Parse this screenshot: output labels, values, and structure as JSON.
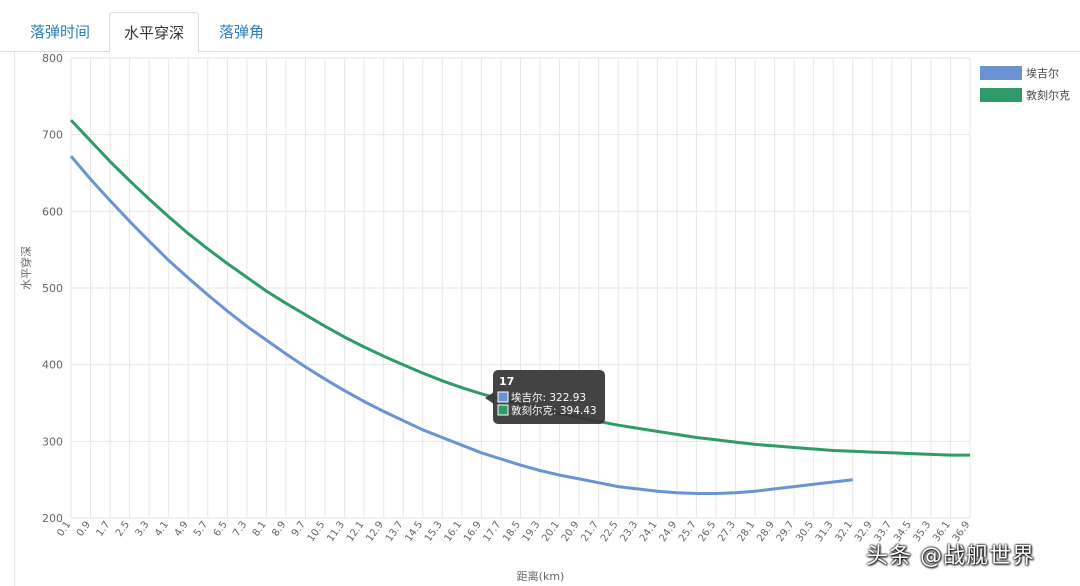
{
  "tabs": [
    {
      "label": "落弹时间",
      "active": false
    },
    {
      "label": "水平穿深",
      "active": true
    },
    {
      "label": "落弹角",
      "active": false
    }
  ],
  "chart_data": {
    "type": "line",
    "title": "",
    "xlabel": "距离(km)",
    "ylabel": "水平穿深",
    "ylim": [
      200,
      800
    ],
    "yticks": [
      200,
      300,
      400,
      500,
      600,
      700,
      800
    ],
    "grid": true,
    "legend_position": "top-right",
    "x": [
      "0.1",
      "0.9",
      "1.7",
      "2.5",
      "3.3",
      "4.1",
      "4.9",
      "5.7",
      "6.5",
      "7.3",
      "8.1",
      "8.9",
      "9.7",
      "10.5",
      "11.3",
      "12.1",
      "12.9",
      "13.7",
      "14.5",
      "15.3",
      "16.1",
      "16.9",
      "17.7",
      "18.5",
      "19.3",
      "20.1",
      "20.9",
      "21.7",
      "22.5",
      "23.3",
      "24.1",
      "24.9",
      "25.7",
      "26.5",
      "27.3",
      "28.1",
      "28.9",
      "29.7",
      "30.5",
      "31.3",
      "32.1",
      "32.9",
      "33.7",
      "34.5",
      "35.3",
      "36.1",
      "36.9"
    ],
    "series": [
      {
        "name": "埃吉尔",
        "color": "#6a93d4",
        "values": [
          672,
          642,
          614,
          587,
          561,
          536,
          513,
          491,
          470,
          450,
          432,
          414,
          397,
          381,
          366,
          352,
          339,
          327,
          315,
          305,
          295,
          285,
          277,
          269,
          262,
          256,
          251,
          246,
          241,
          238,
          235,
          233,
          232,
          232,
          233,
          235,
          238,
          241,
          244,
          247,
          250,
          null,
          null,
          null,
          null,
          null,
          null
        ]
      },
      {
        "name": "敦刻尔克",
        "color": "#2e9b68",
        "values": [
          719,
          692,
          665,
          640,
          616,
          593,
          571,
          551,
          532,
          514,
          496,
          480,
          465,
          450,
          436,
          423,
          411,
          400,
          389,
          379,
          370,
          362,
          355,
          348,
          342,
          336,
          331,
          326,
          321,
          317,
          313,
          309,
          305,
          302,
          299,
          296,
          294,
          292,
          290,
          288,
          287,
          286,
          285,
          284,
          283,
          282,
          282
        ]
      }
    ],
    "tooltip": {
      "x": "17",
      "entries": [
        {
          "name": "埃吉尔",
          "value": "322.93"
        },
        {
          "name": "敦刻尔克",
          "value": "394.43"
        }
      ]
    }
  },
  "watermark": "头条 @战舰世界"
}
